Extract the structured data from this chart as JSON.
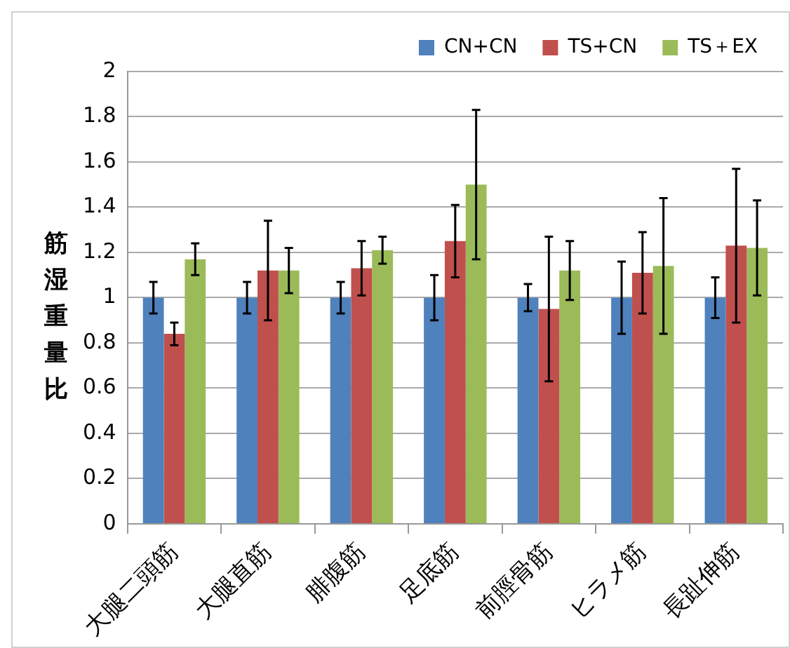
{
  "chart_data": {
    "type": "bar",
    "ylabel": "筋湿重量比",
    "categories": [
      "大腿二頭筋",
      "大腿直筋",
      "腓腹筋",
      "足底筋",
      "前脛骨筋",
      "ヒラメ筋",
      "長趾伸筋"
    ],
    "series": [
      {
        "name": "CN+CN",
        "color": "#4f81bd",
        "values": [
          1.0,
          1.0,
          1.0,
          1.0,
          1.0,
          1.0,
          1.0
        ],
        "errors": [
          0.07,
          0.07,
          0.07,
          0.1,
          0.06,
          0.16,
          0.09
        ]
      },
      {
        "name": "TS+CN",
        "color": "#c0504d",
        "values": [
          0.84,
          1.12,
          1.13,
          1.25,
          0.95,
          1.11,
          1.23
        ],
        "errors": [
          0.05,
          0.22,
          0.12,
          0.16,
          0.32,
          0.18,
          0.34
        ]
      },
      {
        "name": "TS＋EX",
        "color": "#9bbb59",
        "values": [
          1.17,
          1.12,
          1.21,
          1.5,
          1.12,
          1.14,
          1.22
        ],
        "errors": [
          0.07,
          0.1,
          0.06,
          0.33,
          0.13,
          0.3,
          0.21
        ]
      }
    ],
    "ylim": [
      0,
      2
    ],
    "yticks": [
      0,
      0.2,
      0.4,
      0.6,
      0.8,
      1,
      1.2,
      1.4,
      1.6,
      1.8,
      2
    ],
    "grid": "y",
    "legend": "top right"
  }
}
